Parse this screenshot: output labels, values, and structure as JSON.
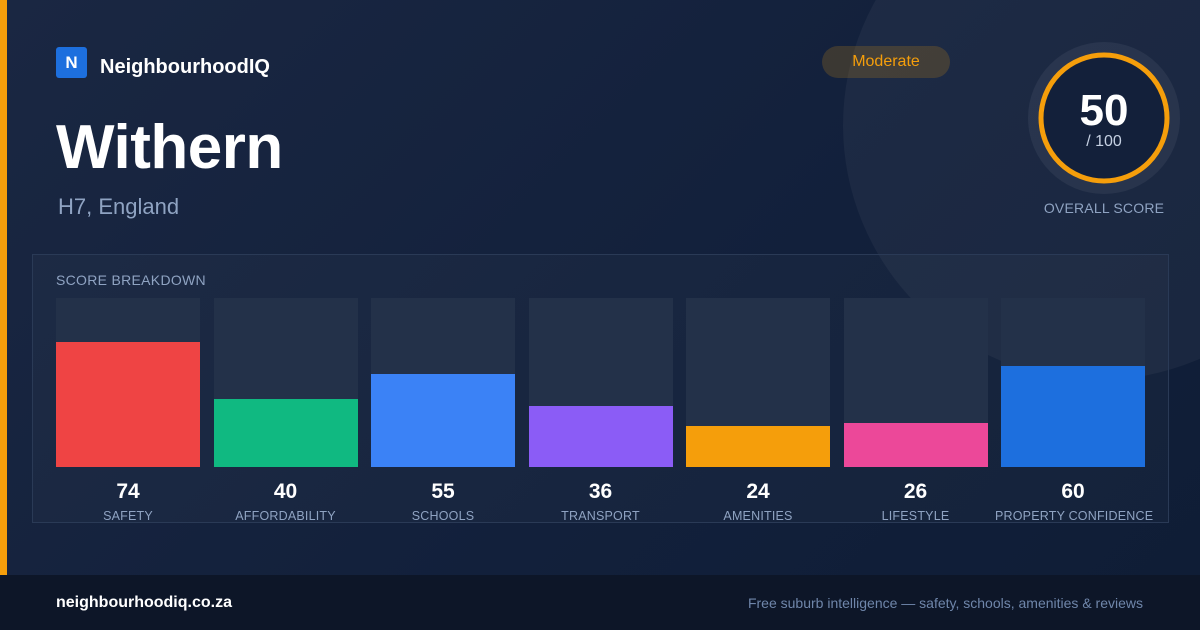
{
  "brand": {
    "logo_letter": "N",
    "name": "NeighbourhoodIQ"
  },
  "location": {
    "name": "Withern",
    "region": "H7, England"
  },
  "badge": {
    "label": "Moderate",
    "color": "#f59e0b"
  },
  "overall": {
    "score": "50",
    "max": "/ 100",
    "caption": "OVERALL SCORE",
    "fraction": 0.5,
    "ring_color": "#f59e0b"
  },
  "breakdown": {
    "title": "SCORE BREAKDOWN",
    "items": [
      {
        "label": "SAFETY",
        "value": "74",
        "score": 74,
        "color": "#ef4444"
      },
      {
        "label": "AFFORDABILITY",
        "value": "40",
        "score": 40,
        "color": "#10b981"
      },
      {
        "label": "SCHOOLS",
        "value": "55",
        "score": 55,
        "color": "#3b82f6"
      },
      {
        "label": "TRANSPORT",
        "value": "36",
        "score": 36,
        "color": "#8b5cf6"
      },
      {
        "label": "AMENITIES",
        "value": "24",
        "score": 24,
        "color": "#f59e0b"
      },
      {
        "label": "LIFESTYLE",
        "value": "26",
        "score": 26,
        "color": "#ec4899"
      },
      {
        "label": "PROPERTY CONFIDENCE",
        "value": "60",
        "score": 60,
        "color": "#1d6fde"
      }
    ]
  },
  "footer": {
    "domain": "neighbourhoodiq.co.za",
    "tagline": "Free suburb intelligence — safety, schools, amenities & reviews"
  }
}
